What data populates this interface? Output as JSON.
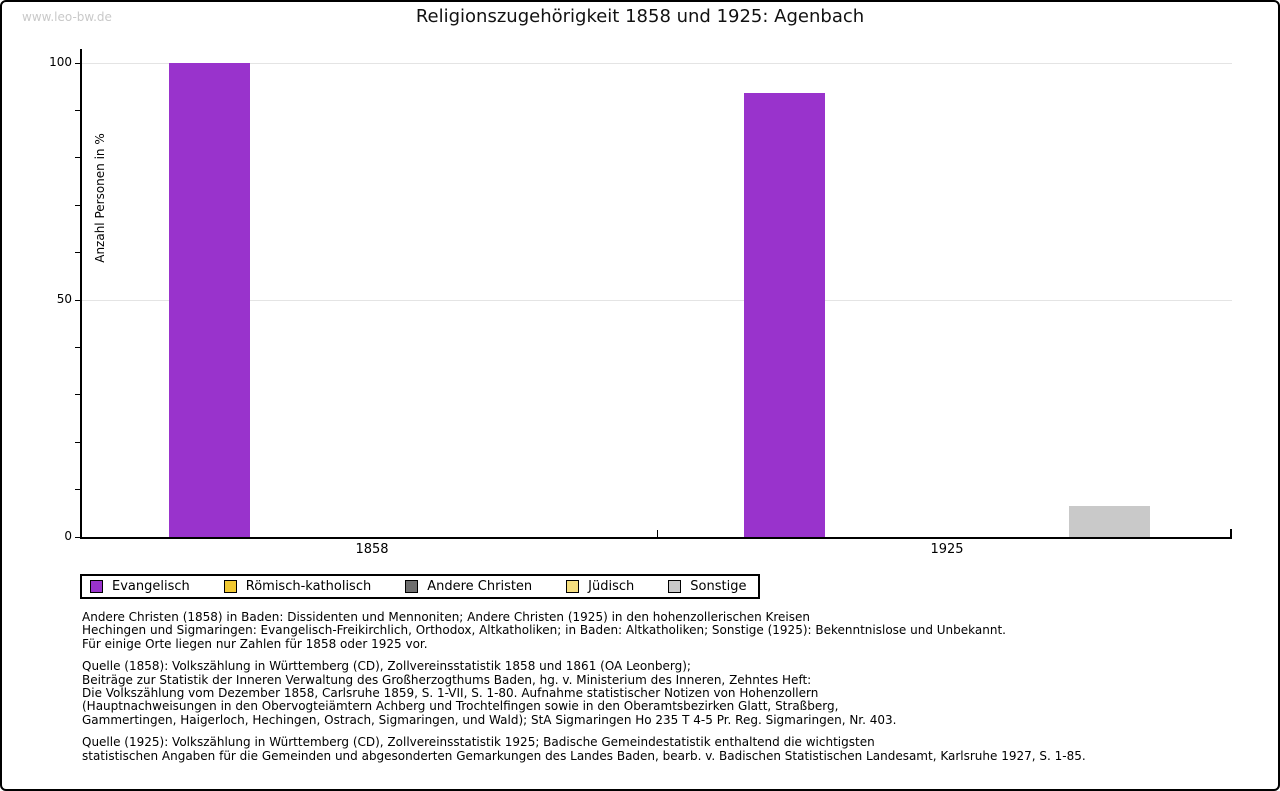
{
  "watermark": "www.leo-bw.de",
  "title": "Religionszugehörigkeit 1858 und 1925: Agenbach",
  "chart_data": {
    "type": "bar",
    "title": "Religionszugehörigkeit 1858 und 1925: Agenbach",
    "xlabel": "",
    "ylabel": "Anzahl Personen in %",
    "ylim": [
      0,
      100
    ],
    "yticks_major": [
      0,
      50,
      100
    ],
    "ytick_minor_step": 10,
    "gridlines_at": [
      50,
      100
    ],
    "grid": true,
    "legend_position": "bottom",
    "categories": [
      "1858",
      "1925"
    ],
    "series": [
      {
        "name": "Evangelisch",
        "color": "#9933cc",
        "values": [
          100,
          93.7
        ]
      },
      {
        "name": "Römisch-katholisch",
        "color": "#f0c832",
        "values": [
          0,
          0
        ]
      },
      {
        "name": "Andere Christen",
        "color": "#6e6e6e",
        "values": [
          0,
          0
        ]
      },
      {
        "name": "Jüdisch",
        "color": "#f5de7e",
        "values": [
          0,
          0
        ]
      },
      {
        "name": "Sonstige",
        "color": "#c9c9c9",
        "values": [
          0,
          6.5
        ]
      }
    ]
  },
  "notes": [
    "Andere Christen (1858) in Baden: Dissidenten und Mennoniten; Andere Christen (1925) in den hohenzollerischen Kreisen\nHechingen und Sigmaringen: Evangelisch-Freikirchlich, Orthodox, Altkatholiken; in Baden: Altkatholiken; Sonstige (1925): Bekenntnislose und Unbekannt.\nFür einige Orte liegen nur Zahlen für 1858 oder 1925 vor.",
    "Quelle (1858): Volkszählung in Württemberg (CD), Zollvereinsstatistik 1858 und 1861 (OA Leonberg);\nBeiträge zur Statistik der Inneren Verwaltung des Großherzogthums Baden, hg. v. Ministerium des Inneren, Zehntes Heft:\nDie Volkszählung vom Dezember 1858, Carlsruhe 1859, S. 1-VII, S. 1-80. Aufnahme statistischer Notizen von Hohenzollern\n(Hauptnachweisungen in den Obervogteiämtern Achberg und Trochtelfingen sowie in den Oberamtsbezirken Glatt, Straßberg,\nGammertingen, Haigerloch, Hechingen, Ostrach, Sigmaringen, und Wald); StA Sigmaringen Ho 235 T 4-5 Pr. Reg. Sigmaringen, Nr. 403.",
    "Quelle (1925): Volkszählung in Württemberg (CD), Zollvereinsstatistik 1925; Badische Gemeindestatistik enthaltend die wichtigsten\nstatistischen Angaben für die Gemeinden und abgesonderten Gemarkungen des Landes Baden, bearb. v. Badischen Statistischen Landesamt, Karlsruhe 1927, S. 1-85."
  ]
}
